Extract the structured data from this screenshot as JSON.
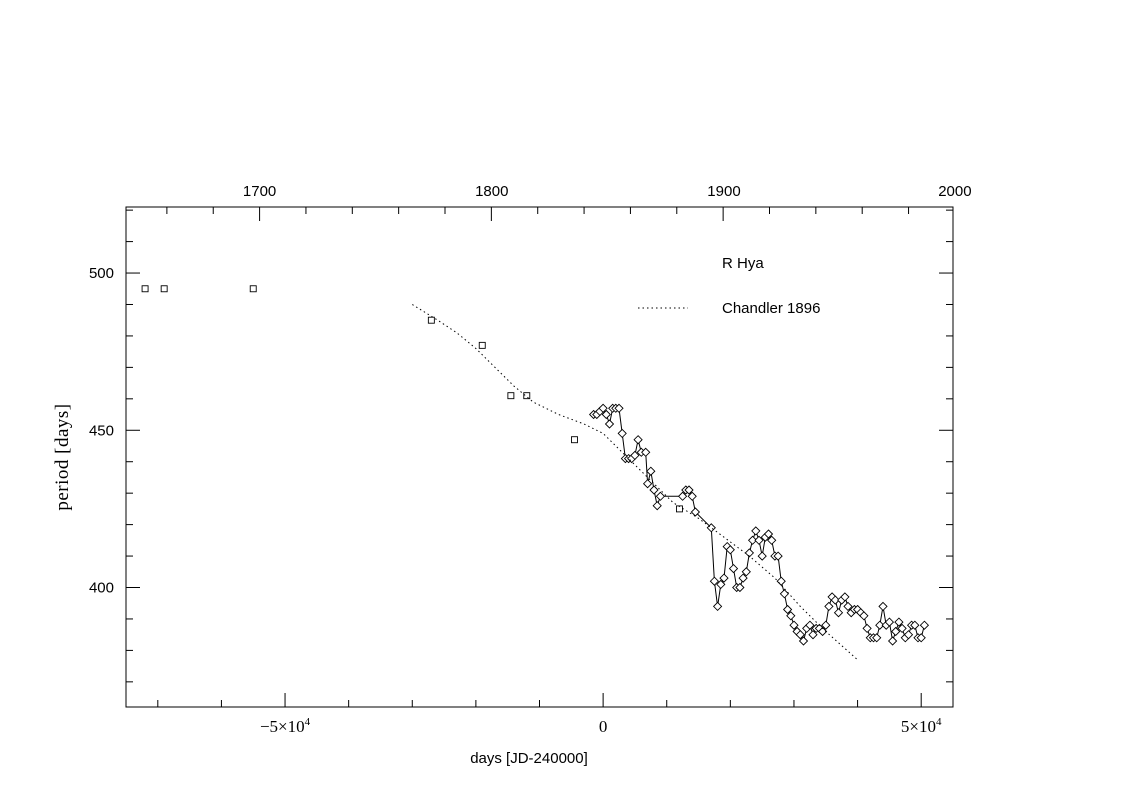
{
  "chart_data": {
    "type": "scatter",
    "xlabel": "days [JD-240000]",
    "ylabel": "period [days]",
    "xlim": [
      -75000,
      55000
    ],
    "ylim": [
      362,
      521
    ],
    "x_ticks": [
      {
        "value": -50000,
        "mantissa": "−5×10",
        "exp": "4"
      },
      {
        "value": 0,
        "text": "0"
      },
      {
        "value": 50000,
        "mantissa": "5×10",
        "exp": "4"
      }
    ],
    "y_ticks": [
      400,
      450,
      500
    ],
    "top_axis": {
      "ticks": [
        {
          "label": "1700",
          "value": -54000
        },
        {
          "label": "1800",
          "value": -17500
        },
        {
          "label": "1900",
          "value": 19000
        },
        {
          "label": "2000",
          "value": 55300
        }
      ]
    },
    "legend": {
      "title": "R Hya",
      "entries": [
        {
          "label": "Chandler 1896",
          "style": "dotted"
        }
      ]
    },
    "series": [
      {
        "marker": "square",
        "line": false,
        "points": [
          [
            -72000,
            495
          ],
          [
            -69000,
            495
          ],
          [
            -55000,
            495
          ],
          [
            -27000,
            485
          ],
          [
            -19000,
            477
          ],
          [
            -14500,
            461
          ],
          [
            -12000,
            461
          ],
          [
            -4500,
            447
          ],
          [
            12000,
            425
          ]
        ]
      },
      {
        "marker": "diamond",
        "line": true,
        "points": [
          [
            -1500,
            455
          ],
          [
            -1000,
            455
          ],
          [
            -500,
            456
          ],
          [
            0,
            457
          ],
          [
            500,
            455
          ],
          [
            1000,
            452
          ],
          [
            1500,
            457
          ],
          [
            2000,
            457
          ],
          [
            2500,
            457
          ],
          [
            3000,
            449
          ],
          [
            3500,
            441
          ],
          [
            4000,
            441
          ],
          [
            4500,
            441
          ],
          [
            5000,
            442
          ],
          [
            5500,
            447
          ],
          [
            6000,
            443
          ],
          [
            6700,
            443
          ],
          [
            7000,
            433
          ],
          [
            7500,
            437
          ],
          [
            8000,
            431
          ],
          [
            8500,
            426
          ],
          [
            9000,
            429
          ],
          [
            12500,
            429
          ],
          [
            13000,
            431
          ],
          [
            13500,
            431
          ],
          [
            14000,
            429
          ],
          [
            14500,
            424
          ],
          [
            17000,
            419
          ],
          [
            17500,
            402
          ],
          [
            18000,
            394
          ],
          [
            18500,
            401
          ],
          [
            19000,
            403
          ],
          [
            19500,
            413
          ],
          [
            20000,
            412
          ],
          [
            20500,
            406
          ],
          [
            21000,
            400
          ],
          [
            21500,
            400
          ],
          [
            22000,
            403
          ],
          [
            22500,
            405
          ],
          [
            23000,
            411
          ],
          [
            23500,
            415
          ],
          [
            24000,
            418
          ],
          [
            24500,
            415
          ],
          [
            25000,
            410
          ],
          [
            25500,
            416
          ],
          [
            26000,
            417
          ],
          [
            26500,
            415
          ],
          [
            27000,
            410
          ],
          [
            27500,
            410
          ],
          [
            28000,
            402
          ],
          [
            28500,
            398
          ],
          [
            29000,
            393
          ],
          [
            29500,
            391
          ],
          [
            30000,
            388
          ],
          [
            30500,
            386
          ],
          [
            31000,
            385
          ],
          [
            31500,
            383
          ],
          [
            32000,
            387
          ],
          [
            32500,
            388
          ],
          [
            33000,
            385
          ],
          [
            33500,
            387
          ],
          [
            34000,
            387
          ],
          [
            34500,
            386
          ],
          [
            35000,
            388
          ],
          [
            35500,
            394
          ],
          [
            36000,
            397
          ],
          [
            36500,
            396
          ],
          [
            37000,
            392
          ],
          [
            37500,
            396
          ],
          [
            38000,
            397
          ],
          [
            38500,
            394
          ],
          [
            39000,
            392
          ],
          [
            39500,
            393
          ],
          [
            40000,
            393
          ],
          [
            40500,
            392
          ],
          [
            41000,
            391
          ],
          [
            41500,
            387
          ],
          [
            42000,
            384
          ],
          [
            42500,
            384
          ],
          [
            43000,
            384
          ],
          [
            43500,
            388
          ],
          [
            44000,
            394
          ],
          [
            44500,
            388
          ],
          [
            45000,
            389
          ],
          [
            45500,
            383
          ],
          [
            46000,
            386
          ],
          [
            46500,
            389
          ],
          [
            47000,
            387
          ],
          [
            47500,
            384
          ],
          [
            48000,
            385
          ],
          [
            48500,
            388
          ],
          [
            49000,
            388
          ],
          [
            49500,
            384
          ],
          [
            50000,
            384
          ],
          [
            50500,
            388
          ]
        ]
      },
      {
        "name": "Chandler 1896",
        "style": "dotted",
        "marker": "none",
        "line": true,
        "points": [
          [
            -30000,
            490
          ],
          [
            -26000,
            485
          ],
          [
            -23000,
            481
          ],
          [
            -20000,
            476
          ],
          [
            -17000,
            470
          ],
          [
            -14000,
            464
          ],
          [
            -11000,
            459
          ],
          [
            -7000,
            455
          ],
          [
            -3000,
            452
          ],
          [
            0,
            449
          ],
          [
            3000,
            443
          ],
          [
            7000,
            435
          ],
          [
            11000,
            427
          ],
          [
            15000,
            422
          ],
          [
            19000,
            416
          ],
          [
            23000,
            410
          ],
          [
            27000,
            403
          ],
          [
            31000,
            394
          ],
          [
            35000,
            386
          ],
          [
            40000,
            377
          ]
        ]
      }
    ]
  }
}
